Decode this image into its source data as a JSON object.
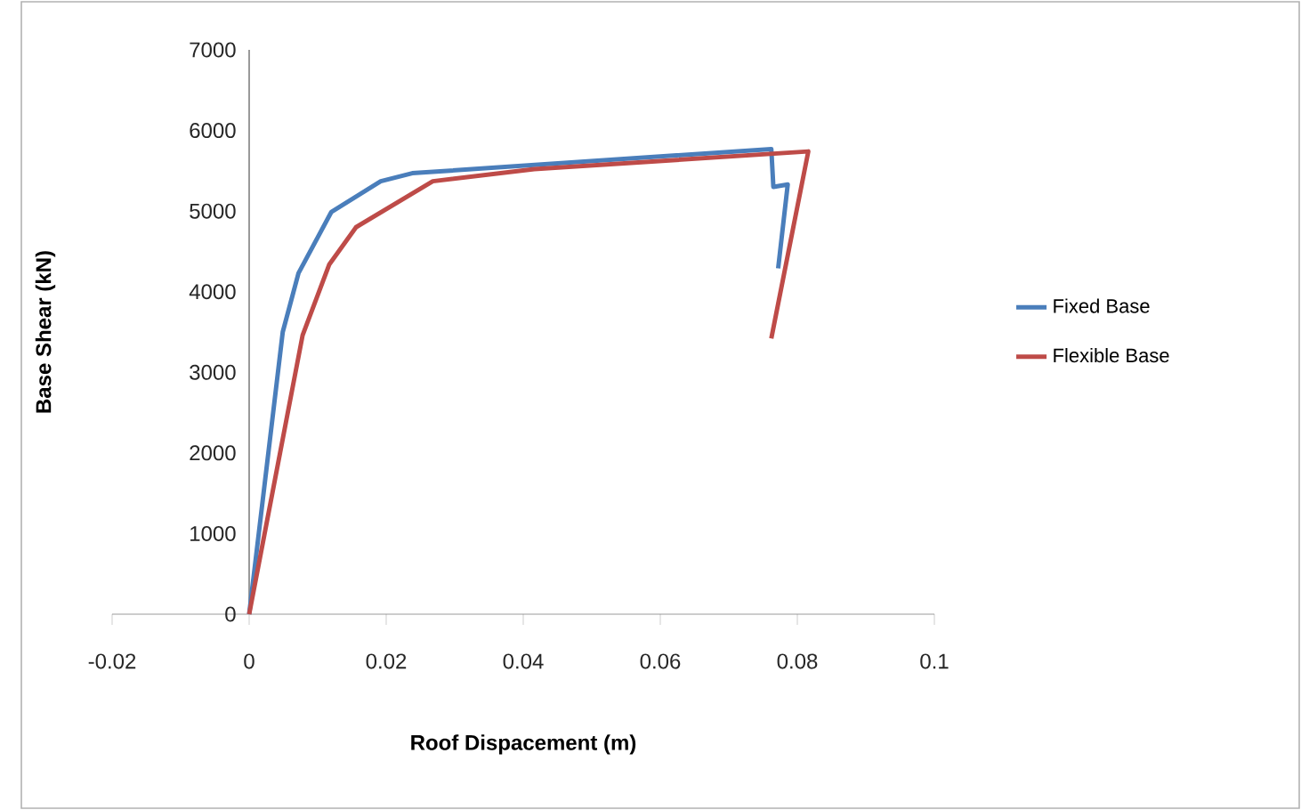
{
  "chart_data": {
    "type": "line",
    "xlabel": "Roof Dispacement (m)",
    "ylabel": "Base Shear (kN)",
    "xlim": [
      -0.02,
      0.1
    ],
    "xticks": [
      -0.02,
      0,
      0.02,
      0.04,
      0.06,
      0.08,
      0.1
    ],
    "ylim": [
      0,
      7000
    ],
    "yticks": [
      0,
      1000,
      2000,
      3000,
      4000,
      5000,
      6000,
      7000
    ],
    "legend": "right",
    "grid": false,
    "marker": "none",
    "line_style": "solid",
    "series": [
      {
        "name": "Fixed Base",
        "color": "#4a7ebb",
        "x": [
          0,
          0.0049,
          0.0072,
          0.012,
          0.0192,
          0.0238,
          0.0762,
          0.0765,
          0.0786,
          0.0772
        ],
        "values": [
          0,
          3500,
          4230,
          4990,
          5370,
          5470,
          5770,
          5300,
          5330,
          4290
        ]
      },
      {
        "name": "Flexible Base",
        "color": "#be4b48",
        "x": [
          0,
          0.0078,
          0.0117,
          0.0156,
          0.0268,
          0.0416,
          0.0816,
          0.0762
        ],
        "values": [
          0,
          3460,
          4340,
          4800,
          5370,
          5520,
          5740,
          3420
        ]
      }
    ]
  }
}
